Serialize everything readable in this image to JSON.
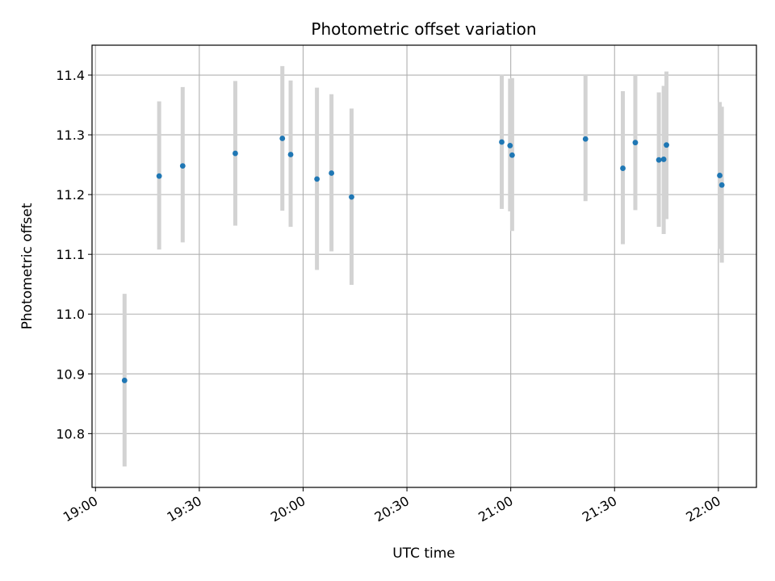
{
  "chart_data": {
    "type": "scatter",
    "title": "Photometric offset variation",
    "xlabel": "UTC time",
    "ylabel": "Photometric offset",
    "grid": true,
    "xlim_minutes": [
      -0.5,
      95.5
    ],
    "ylim": [
      10.71,
      11.45
    ],
    "x_ticks": [
      {
        "minutes": 0,
        "label": "19:00"
      },
      {
        "minutes": 15,
        "label": "19:30"
      },
      {
        "minutes": 30,
        "label": "20:00"
      },
      {
        "minutes": 45,
        "label": "20:30"
      },
      {
        "minutes": 60,
        "label": "21:00"
      },
      {
        "minutes": 75,
        "label": "21:30"
      },
      {
        "minutes": 90,
        "label": "22:00"
      }
    ],
    "y_ticks": [
      {
        "value": 10.8,
        "label": "10.8"
      },
      {
        "value": 10.9,
        "label": "10.9"
      },
      {
        "value": 11.0,
        "label": "11.0"
      },
      {
        "value": 11.1,
        "label": "11.1"
      },
      {
        "value": 11.2,
        "label": "11.2"
      },
      {
        "value": 11.3,
        "label": "11.3"
      },
      {
        "value": 11.4,
        "label": "11.4"
      }
    ],
    "marker_color": "#1f77b4",
    "errorbar_color": "#d3d3d3",
    "points": [
      {
        "t": 4.2,
        "y": 10.889,
        "lo": 10.745,
        "hi": 11.034
      },
      {
        "t": 9.2,
        "y": 11.231,
        "lo": 11.108,
        "hi": 11.356
      },
      {
        "t": 12.6,
        "y": 11.248,
        "lo": 11.12,
        "hi": 11.38
      },
      {
        "t": 20.2,
        "y": 11.269,
        "lo": 11.148,
        "hi": 11.39
      },
      {
        "t": 27.0,
        "y": 11.294,
        "lo": 11.173,
        "hi": 11.415
      },
      {
        "t": 28.2,
        "y": 11.267,
        "lo": 11.146,
        "hi": 11.391
      },
      {
        "t": 32.0,
        "y": 11.226,
        "lo": 11.074,
        "hi": 11.379
      },
      {
        "t": 34.1,
        "y": 11.236,
        "lo": 11.105,
        "hi": 11.368
      },
      {
        "t": 37.0,
        "y": 11.196,
        "lo": 11.049,
        "hi": 11.344
      },
      {
        "t": 58.7,
        "y": 11.288,
        "lo": 11.176,
        "hi": 11.401
      },
      {
        "t": 59.9,
        "y": 11.282,
        "lo": 11.172,
        "hi": 11.394
      },
      {
        "t": 60.2,
        "y": 11.266,
        "lo": 11.139,
        "hi": 11.395
      },
      {
        "t": 70.8,
        "y": 11.293,
        "lo": 11.189,
        "hi": 11.4
      },
      {
        "t": 76.2,
        "y": 11.244,
        "lo": 11.117,
        "hi": 11.373
      },
      {
        "t": 78.0,
        "y": 11.287,
        "lo": 11.174,
        "hi": 11.4
      },
      {
        "t": 81.4,
        "y": 11.258,
        "lo": 11.146,
        "hi": 11.371
      },
      {
        "t": 82.1,
        "y": 11.259,
        "lo": 11.134,
        "hi": 11.382
      },
      {
        "t": 82.5,
        "y": 11.283,
        "lo": 11.159,
        "hi": 11.406
      },
      {
        "t": 90.2,
        "y": 11.232,
        "lo": 11.109,
        "hi": 11.355
      },
      {
        "t": 90.5,
        "y": 11.216,
        "lo": 11.086,
        "hi": 11.347
      }
    ]
  }
}
